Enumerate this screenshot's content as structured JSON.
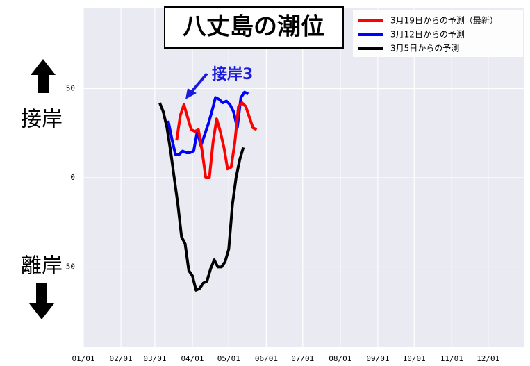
{
  "chart_data": {
    "type": "line",
    "title": "八丈島の潮位",
    "annotations": {
      "up_label": "接岸",
      "down_label": "離岸",
      "callout": "接岸3"
    },
    "xlim": [
      "01/01",
      "12/31"
    ],
    "xticks": [
      "01/01",
      "02/01",
      "03/01",
      "04/01",
      "05/01",
      "06/01",
      "07/01",
      "08/01",
      "09/01",
      "10/01",
      "11/01",
      "12/01"
    ],
    "ylim": [
      -95,
      95
    ],
    "yticks": [
      50,
      0,
      -50
    ],
    "grid": true,
    "legend": "top-right",
    "series": [
      {
        "name": "3月19日からの予測（最新）",
        "color": "#ff0000",
        "x": [
          "03/19",
          "03/22",
          "03/25",
          "03/28",
          "03/31",
          "04/03",
          "04/06",
          "04/09",
          "04/12",
          "04/15",
          "04/18",
          "04/21",
          "04/24",
          "04/27",
          "04/30",
          "05/03",
          "05/06",
          "05/09",
          "05/12",
          "05/15",
          "05/18",
          "05/21",
          "05/24"
        ],
        "values": [
          21,
          35,
          41,
          34,
          27,
          26,
          27,
          15,
          0,
          0,
          20,
          33,
          26,
          17,
          5,
          6,
          20,
          40,
          42,
          40,
          34,
          28,
          27
        ]
      },
      {
        "name": "3月12日からの予測",
        "color": "#0000ff",
        "x": [
          "03/12",
          "03/15",
          "03/18",
          "03/21",
          "03/24",
          "03/27",
          "03/30",
          "04/02",
          "04/05",
          "04/08",
          "04/11",
          "04/14",
          "04/17",
          "04/20",
          "04/23",
          "04/26",
          "04/29",
          "05/02",
          "05/05",
          "05/08",
          "05/11",
          "05/14",
          "05/17"
        ],
        "values": [
          32,
          22,
          13,
          13,
          15,
          14,
          14,
          15,
          26,
          18,
          24,
          30,
          37,
          45,
          44,
          42,
          43,
          41,
          37,
          28,
          45,
          48,
          47
        ]
      },
      {
        "name": "3月5日からの予測",
        "color": "#000000",
        "x": [
          "03/05",
          "03/08",
          "03/11",
          "03/14",
          "03/17",
          "03/20",
          "03/23",
          "03/26",
          "03/29",
          "04/01",
          "04/04",
          "04/07",
          "04/10",
          "04/13",
          "04/16",
          "04/19",
          "04/22",
          "04/25",
          "04/28",
          "05/01",
          "05/04",
          "05/07",
          "05/10",
          "05/13"
        ],
        "values": [
          42,
          37,
          28,
          15,
          0,
          -15,
          -33,
          -37,
          -52,
          -55,
          -63,
          -62,
          -59,
          -58,
          -51,
          -46,
          -50,
          -50,
          -47,
          -40,
          -15,
          0,
          10,
          17
        ]
      }
    ]
  }
}
